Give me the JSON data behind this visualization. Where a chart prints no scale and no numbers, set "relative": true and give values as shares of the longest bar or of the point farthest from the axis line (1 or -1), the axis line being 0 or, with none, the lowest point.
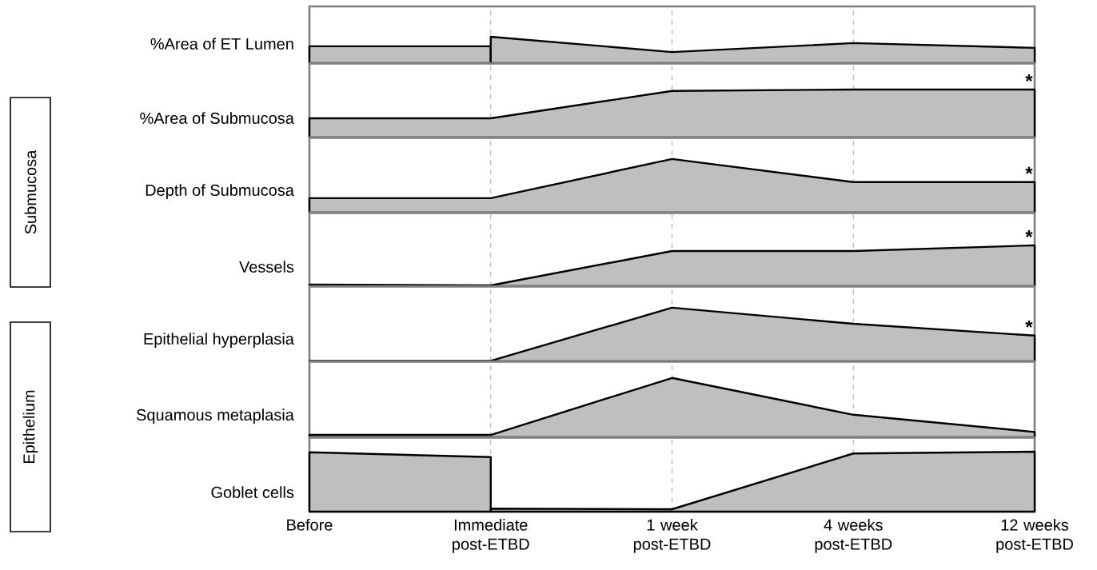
{
  "chart_data": [
    {
      "type": "area",
      "relative": true,
      "ylabel": "%Area of ET Lumen",
      "grid": "x",
      "tick_labels": false,
      "categories": [
        null,
        null,
        null,
        null,
        null
      ],
      "series": [
        {
          "color": "#bfbfbf",
          "values": [
            0.64,
            0.64,
            null,
            null,
            null
          ]
        },
        {
          "color": "#bfbfbf",
          "values": [
            null,
            1,
            0.42,
            0.76,
            0.58
          ]
        }
      ]
    },
    {
      "type": "area",
      "relative": true,
      "ylabel": "%Area of Submucosa",
      "grid": "x",
      "tick_labels": false,
      "categories": [
        null,
        null,
        null,
        null,
        null
      ],
      "series": [
        {
          "color": "#bfbfbf",
          "values": [
            0.4,
            0.4,
            0.97,
            1,
            1
          ]
        }
      ],
      "annotations": [
        {
          "text": "*",
          "y": 1
        }
      ]
    },
    {
      "type": "area",
      "relative": true,
      "ylabel": "Depth of Submucosa",
      "grid": "x",
      "tick_labels": false,
      "categories": [
        null,
        null,
        null,
        null,
        null
      ],
      "series": [
        {
          "color": "#bfbfbf",
          "values": [
            0.27,
            0.27,
            1,
            0.57,
            0.57
          ]
        }
      ],
      "annotations": [
        {
          "text": "*",
          "y": 0.57
        },
        "Submucosa"
      ]
    },
    {
      "type": "area",
      "relative": true,
      "ylabel": "Vessels",
      "grid": "x",
      "tick_labels": false,
      "categories": [
        null,
        null,
        null,
        null,
        null
      ],
      "series": [
        {
          "color": "#bfbfbf",
          "values": [
            0.04,
            0.02,
            0.86,
            0.86,
            1
          ]
        }
      ],
      "annotations": [
        {
          "text": "*",
          "y": 1
        }
      ]
    },
    {
      "type": "area",
      "relative": true,
      "ylabel": "Epithelial hyperplasia",
      "grid": "x",
      "tick_labels": false,
      "categories": [
        null,
        null,
        null,
        null,
        null
      ],
      "series": [
        {
          "color": "#bfbfbf",
          "values": [
            0.01,
            0.01,
            1,
            0.7,
            0.48
          ]
        }
      ],
      "annotations": [
        {
          "text": "*",
          "y": 0.48
        }
      ]
    },
    {
      "type": "area",
      "relative": true,
      "ylabel": "Squamous metaplasia",
      "grid": "x",
      "tick_labels": false,
      "categories": [
        null,
        null,
        null,
        null,
        null
      ],
      "series": [
        {
          "color": "#bfbfbf",
          "values": [
            0.04,
            0.04,
            1,
            0.38,
            0.09
          ]
        }
      ]
    },
    {
      "type": "area",
      "relative": true,
      "ylabel": "Goblet cells",
      "grid": "x",
      "tick_labels": "x",
      "categories": [
        "Before",
        "Immediate post-ETBD",
        "1 week post-ETBD",
        "4 weeks post-ETBD",
        "12 weeks post-ETBD"
      ],
      "series": [
        {
          "color": "#bfbfbf",
          "values": [
            0.99,
            0.91,
            null,
            null,
            null
          ]
        },
        {
          "color": "#bfbfbf",
          "values": [
            null,
            0.05,
            0.04,
            0.97,
            1
          ]
        }
      ],
      "annotations": [
        "Epithelium"
      ]
    }
  ]
}
